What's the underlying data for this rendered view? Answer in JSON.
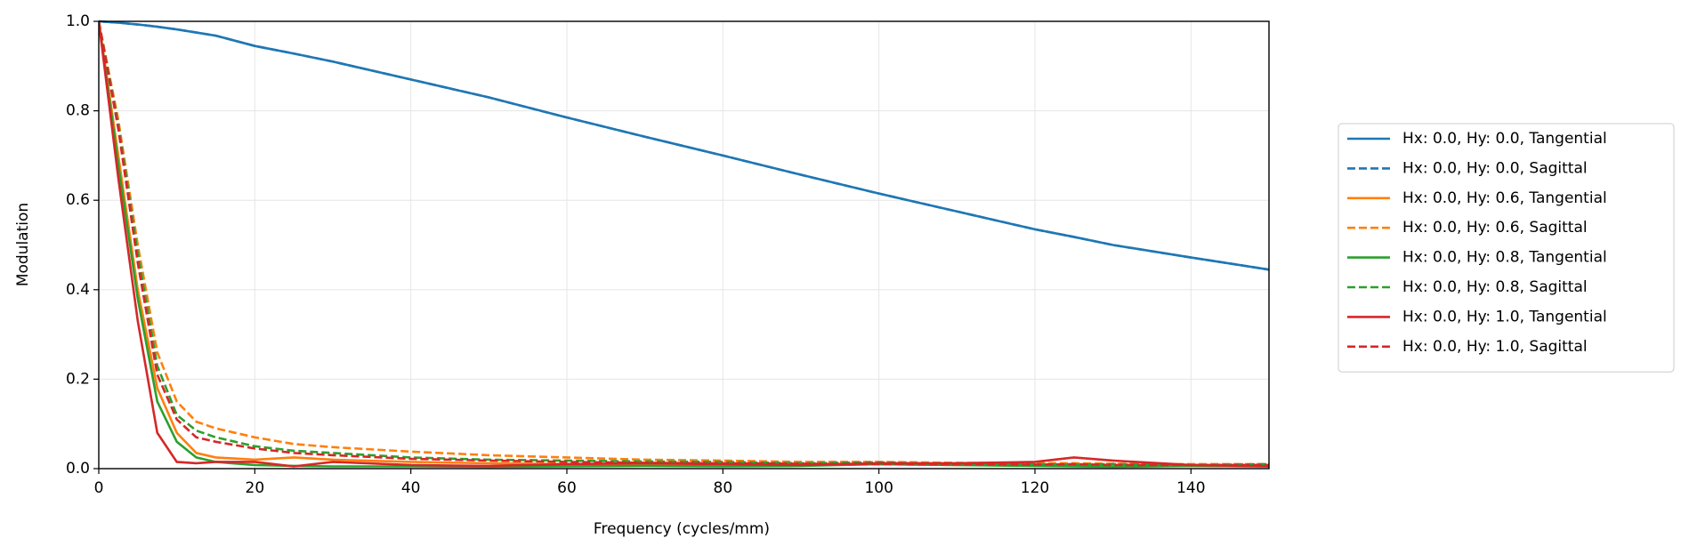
{
  "chart_data": {
    "type": "line",
    "xlabel": "Frequency (cycles/mm)",
    "ylabel": "Modulation",
    "x": [
      0,
      2.5,
      5,
      7.5,
      10,
      12.5,
      15,
      20,
      25,
      30,
      40,
      50,
      60,
      70,
      80,
      90,
      100,
      110,
      120,
      125,
      130,
      140,
      150
    ],
    "series": [
      {
        "name": "Hx: 0.0, Hy: 0.0, Tangential",
        "color": "#1f77b4",
        "dash": "solid",
        "values": [
          1.0,
          0.997,
          0.993,
          0.988,
          0.982,
          0.975,
          0.968,
          0.945,
          0.928,
          0.91,
          0.87,
          0.83,
          0.785,
          0.742,
          0.7,
          0.657,
          0.615,
          0.575,
          0.535,
          0.518,
          0.5,
          0.472,
          0.445
        ]
      },
      {
        "name": "Hx: 0.0, Hy: 0.0, Sagittal",
        "color": "#1f77b4",
        "dash": "dashed",
        "values": [
          1.0,
          0.997,
          0.993,
          0.988,
          0.982,
          0.975,
          0.968,
          0.945,
          0.928,
          0.91,
          0.87,
          0.83,
          0.785,
          0.742,
          0.7,
          0.657,
          0.615,
          0.575,
          0.535,
          0.518,
          0.5,
          0.472,
          0.445
        ]
      },
      {
        "name": "Hx: 0.0, Hy: 0.6, Tangential",
        "color": "#ff7f0e",
        "dash": "solid",
        "values": [
          1.0,
          0.7,
          0.4,
          0.18,
          0.08,
          0.035,
          0.025,
          0.02,
          0.025,
          0.02,
          0.015,
          0.012,
          0.01,
          0.008,
          0.01,
          0.008,
          0.01,
          0.008,
          0.008,
          0.01,
          0.008,
          0.006,
          0.005
        ]
      },
      {
        "name": "Hx: 0.0, Hy: 0.6, Sagittal",
        "color": "#ff7f0e",
        "dash": "dashed",
        "values": [
          1.0,
          0.78,
          0.5,
          0.26,
          0.15,
          0.105,
          0.09,
          0.07,
          0.055,
          0.048,
          0.038,
          0.03,
          0.025,
          0.02,
          0.018,
          0.015,
          0.015,
          0.013,
          0.012,
          0.012,
          0.011,
          0.01,
          0.01
        ]
      },
      {
        "name": "Hx: 0.0, Hy: 0.8, Tangential",
        "color": "#2ca02c",
        "dash": "solid",
        "values": [
          1.0,
          0.68,
          0.38,
          0.15,
          0.06,
          0.025,
          0.015,
          0.008,
          0.006,
          0.005,
          0.005,
          0.004,
          0.005,
          0.006,
          0.005,
          0.006,
          0.01,
          0.008,
          0.006,
          0.005,
          0.004,
          0.006,
          0.005
        ]
      },
      {
        "name": "Hx: 0.0, Hy: 0.8, Sagittal",
        "color": "#2ca02c",
        "dash": "dashed",
        "values": [
          1.0,
          0.77,
          0.48,
          0.23,
          0.12,
          0.085,
          0.07,
          0.05,
          0.04,
          0.035,
          0.025,
          0.02,
          0.018,
          0.016,
          0.015,
          0.012,
          0.014,
          0.01,
          0.01,
          0.009,
          0.01,
          0.008,
          0.01
        ]
      },
      {
        "name": "Hx: 0.0, Hy: 1.0, Tangential",
        "color": "#d62728",
        "dash": "solid",
        "values": [
          1.0,
          0.65,
          0.33,
          0.08,
          0.015,
          0.012,
          0.015,
          0.015,
          0.005,
          0.015,
          0.008,
          0.006,
          0.01,
          0.012,
          0.01,
          0.008,
          0.012,
          0.012,
          0.015,
          0.025,
          0.018,
          0.008,
          0.005
        ]
      },
      {
        "name": "Hx: 0.0, Hy: 1.0, Sagittal",
        "color": "#d62728",
        "dash": "dashed",
        "values": [
          1.0,
          0.76,
          0.46,
          0.21,
          0.11,
          0.07,
          0.06,
          0.045,
          0.035,
          0.03,
          0.022,
          0.018,
          0.015,
          0.013,
          0.012,
          0.011,
          0.01,
          0.01,
          0.009,
          0.01,
          0.008,
          0.008,
          0.008
        ]
      }
    ],
    "xlim": [
      0,
      150
    ],
    "xticks": [
      0,
      20,
      40,
      60,
      80,
      100,
      120,
      140
    ],
    "ylim": [
      0,
      1
    ],
    "yticks": [
      {
        "value": 0,
        "label": "0.0"
      },
      0.2,
      0.4,
      0.6,
      0.8,
      {
        "value": 1,
        "label": "1.0"
      }
    ],
    "grid": true,
    "legend": "outside right"
  }
}
